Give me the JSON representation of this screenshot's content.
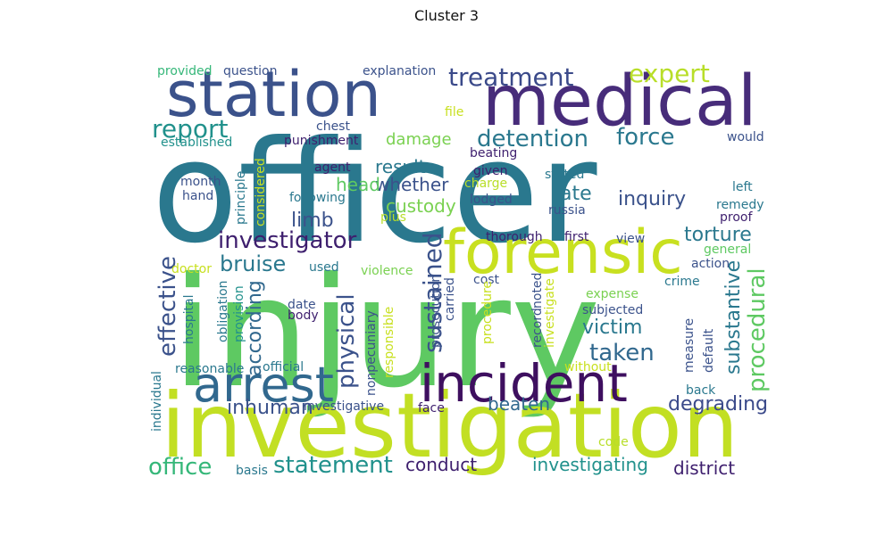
{
  "title": "Cluster 3",
  "words": [
    {
      "text": "officer",
      "color": "#2a788e"
    },
    {
      "text": "injury",
      "color": "#5ec962"
    },
    {
      "text": "investigation",
      "color": "#c2df23"
    },
    {
      "text": "medical",
      "color": "#472c7a"
    },
    {
      "text": "station",
      "color": "#3b528b"
    },
    {
      "text": "forensic",
      "color": "#c8e020"
    },
    {
      "text": "incident",
      "color": "#3e0f5f"
    },
    {
      "text": "arrest",
      "color": "#31688e"
    },
    {
      "text": "treatment",
      "color": "#3b4a8a"
    },
    {
      "text": "expert",
      "color": "#b8de29"
    },
    {
      "text": "report",
      "color": "#21918c"
    },
    {
      "text": "detention",
      "color": "#2a788e"
    },
    {
      "text": "force",
      "color": "#2a788e"
    },
    {
      "text": "damage",
      "color": "#7ad151"
    },
    {
      "text": "result",
      "color": "#2a788e"
    },
    {
      "text": "whether",
      "color": "#3b528b"
    },
    {
      "text": "head",
      "color": "#5ec962"
    },
    {
      "text": "custody",
      "color": "#7ad151"
    },
    {
      "text": "rate",
      "color": "#2a788e"
    },
    {
      "text": "inquiry",
      "color": "#3b528b"
    },
    {
      "text": "limb",
      "color": "#3b528b"
    },
    {
      "text": "investigator",
      "color": "#3e1f6e"
    },
    {
      "text": "bruise",
      "color": "#2a788e"
    },
    {
      "text": "torture",
      "color": "#2a788e"
    },
    {
      "text": "procedural",
      "color": "#5ec962"
    },
    {
      "text": "effective",
      "color": "#3b528b"
    },
    {
      "text": "physical",
      "color": "#3b528b"
    },
    {
      "text": "sustained",
      "color": "#3b528b"
    },
    {
      "text": "victim",
      "color": "#2a788e"
    },
    {
      "text": "taken",
      "color": "#31688e"
    },
    {
      "text": "substantive",
      "color": "#2a788e"
    },
    {
      "text": "according",
      "color": "#31688e"
    },
    {
      "text": "inhuman",
      "color": "#3b528b"
    },
    {
      "text": "degrading",
      "color": "#3b4a8a"
    },
    {
      "text": "beaten",
      "color": "#31688e"
    },
    {
      "text": "statement",
      "color": "#21918c"
    },
    {
      "text": "office",
      "color": "#35b779"
    },
    {
      "text": "conduct",
      "color": "#3e1f6e"
    },
    {
      "text": "investigating",
      "color": "#21918c"
    },
    {
      "text": "district",
      "color": "#3e1f6e"
    },
    {
      "text": "provided",
      "color": "#35b779"
    },
    {
      "text": "question",
      "color": "#3b528b"
    },
    {
      "text": "explanation",
      "color": "#3b528b"
    },
    {
      "text": "chest",
      "color": "#3b528b"
    },
    {
      "text": "file",
      "color": "#c8e020"
    },
    {
      "text": "established",
      "color": "#21918c"
    },
    {
      "text": "punishment",
      "color": "#3e1f6e"
    },
    {
      "text": "would",
      "color": "#3b528b"
    },
    {
      "text": "beating",
      "color": "#3e1f6e"
    },
    {
      "text": "agent",
      "color": "#3e1f6e"
    },
    {
      "text": "given",
      "color": "#3e1f6e"
    },
    {
      "text": "stated",
      "color": "#2a788e"
    },
    {
      "text": "left",
      "color": "#2a788e"
    },
    {
      "text": "month",
      "color": "#3b528b"
    },
    {
      "text": "charge",
      "color": "#b8de29"
    },
    {
      "text": "following",
      "color": "#2a788e"
    },
    {
      "text": "lodged",
      "color": "#3b528b"
    },
    {
      "text": "remedy",
      "color": "#2a788e"
    },
    {
      "text": "hand",
      "color": "#3b528b"
    },
    {
      "text": "principle",
      "color": "#2a788e"
    },
    {
      "text": "considered",
      "color": "#c8e020"
    },
    {
      "text": "russia",
      "color": "#3b528b"
    },
    {
      "text": "proof",
      "color": "#3e1f6e"
    },
    {
      "text": "plus",
      "color": "#b8de29"
    },
    {
      "text": "thorough",
      "color": "#3e1f6e"
    },
    {
      "text": "first",
      "color": "#3e1f6e"
    },
    {
      "text": "view",
      "color": "#3b528b"
    },
    {
      "text": "general",
      "color": "#5ec962"
    },
    {
      "text": "doctor",
      "color": "#c8e020"
    },
    {
      "text": "used",
      "color": "#2a788e"
    },
    {
      "text": "violence",
      "color": "#7ad151"
    },
    {
      "text": "action",
      "color": "#3b528b"
    },
    {
      "text": "crime",
      "color": "#2a788e"
    },
    {
      "text": "cost",
      "color": "#3b528b"
    },
    {
      "text": "carried",
      "color": "#3b528b"
    },
    {
      "text": "expense",
      "color": "#7ad151"
    },
    {
      "text": "obligation",
      "color": "#2a788e"
    },
    {
      "text": "provision",
      "color": "#21918c"
    },
    {
      "text": "hospital",
      "color": "#2a788e"
    },
    {
      "text": "date",
      "color": "#3b528b"
    },
    {
      "text": "body",
      "color": "#3e1f6e"
    },
    {
      "text": "prosecution",
      "color": "#3b528b"
    },
    {
      "text": "procedure",
      "color": "#c8e020"
    },
    {
      "text": "record",
      "color": "#3b528b"
    },
    {
      "text": "noted",
      "color": "#3b528b"
    },
    {
      "text": "investigate",
      "color": "#c8e020"
    },
    {
      "text": "subjected",
      "color": "#3b528b"
    },
    {
      "text": "measure",
      "color": "#3b528b"
    },
    {
      "text": "default",
      "color": "#3b528b"
    },
    {
      "text": "reasonable",
      "color": "#2a788e"
    },
    {
      "text": "official",
      "color": "#2a788e"
    },
    {
      "text": "nonpecuniary",
      "color": "#3b528b"
    },
    {
      "text": "responsible",
      "color": "#c8e020"
    },
    {
      "text": "without",
      "color": "#c8e020"
    },
    {
      "text": "back",
      "color": "#2a788e"
    },
    {
      "text": "individual",
      "color": "#2a788e"
    },
    {
      "text": "investigative",
      "color": "#3b528b"
    },
    {
      "text": "face",
      "color": "#3e1f6e"
    },
    {
      "text": "code",
      "color": "#b8de29"
    },
    {
      "text": "basis",
      "color": "#2a788e"
    }
  ]
}
